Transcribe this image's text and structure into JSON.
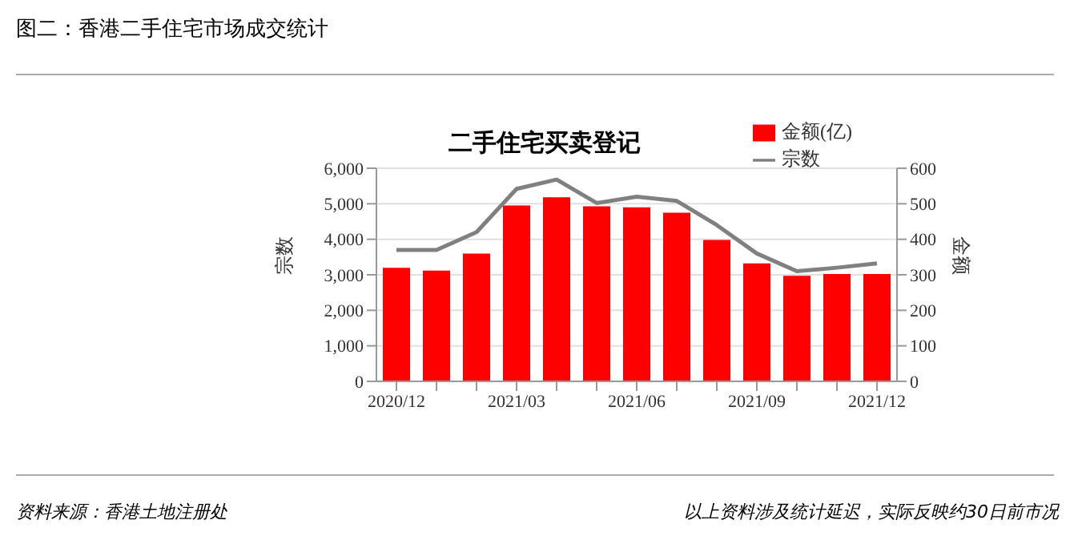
{
  "chart_data": {
    "type": "bar",
    "title": "图二：香港二手住宅市场成交统计",
    "subtitle": "二手住宅买卖登记",
    "categories": [
      "2020/12",
      null,
      null,
      "2021/03",
      null,
      null,
      "2021/06",
      null,
      null,
      "2021/09",
      null,
      null,
      "2021/12"
    ],
    "series": [
      {
        "name": "金额(亿)",
        "axis": "y2",
        "color": "#ff0000",
        "values": [
          320,
          312,
          360,
          495,
          518,
          493,
          490,
          475,
          398,
          332,
          297,
          302,
          302
        ]
      },
      {
        "name": "宗数",
        "type": "line",
        "axis": "y",
        "color": "#808080",
        "values": [
          3700,
          3700,
          4200,
          5420,
          5680,
          5020,
          5200,
          5080,
          4400,
          3600,
          3100,
          3200,
          3320
        ]
      }
    ],
    "ylabel": "宗数",
    "y2label": "金额",
    "ylim": [
      0,
      6000
    ],
    "yticks": [
      {
        "value": 0,
        "label": "0"
      },
      {
        "value": 1000,
        "label": "1,000"
      },
      {
        "value": 2000,
        "label": "2,000"
      },
      {
        "value": 3000,
        "label": "3,000"
      },
      {
        "value": 4000,
        "label": "4,000"
      },
      {
        "value": 5000,
        "label": "5,000"
      },
      {
        "value": 6000,
        "label": "6,000"
      }
    ],
    "y2lim": [
      0,
      600
    ],
    "y2ticks": [
      0,
      100,
      200,
      300,
      400,
      500,
      600
    ],
    "grid": "y",
    "legend": "top right",
    "marker": "none",
    "line_style": "solid",
    "annotations": [
      "资料来源：香港土地注册处",
      "以上资料涉及统计延迟，实际反映约30日前市况"
    ]
  }
}
